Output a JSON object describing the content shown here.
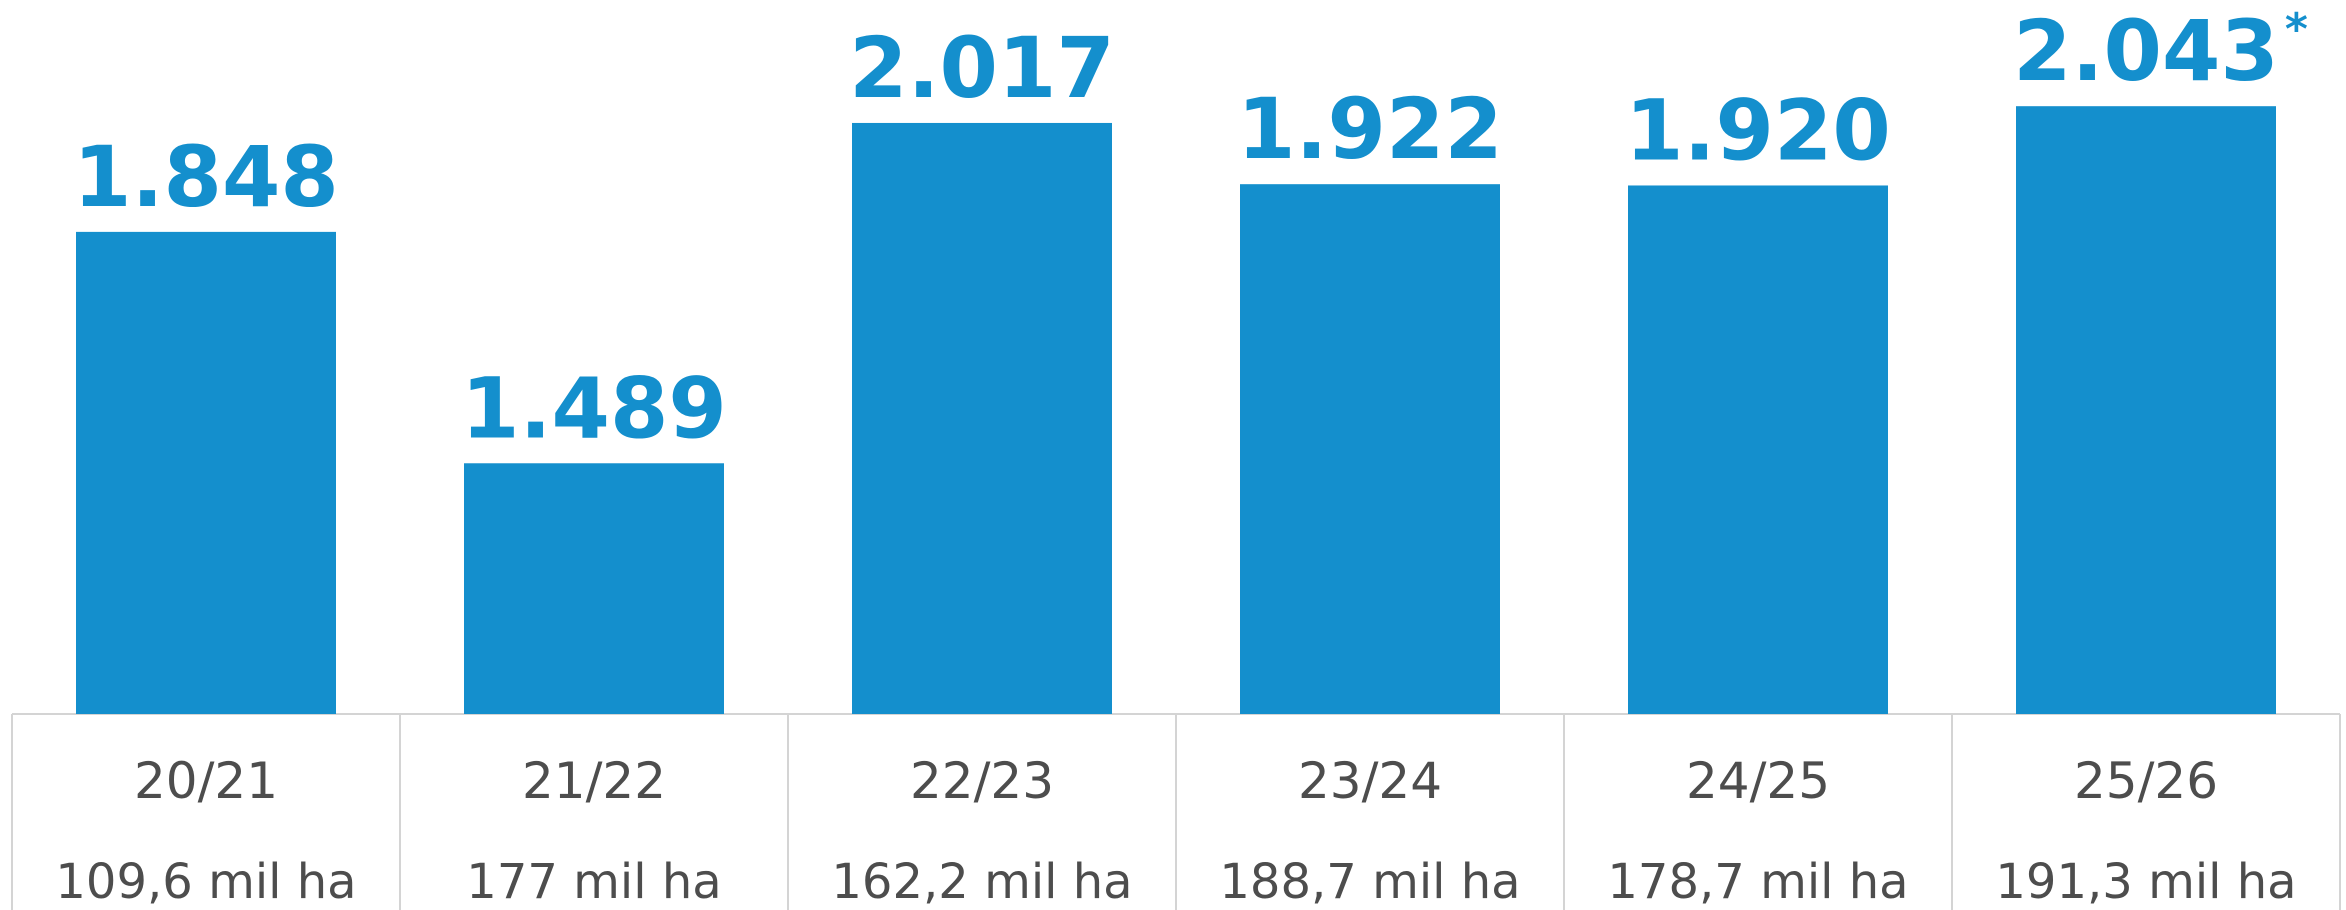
{
  "chart_data": {
    "type": "bar",
    "categories": [
      "20/21",
      "21/22",
      "22/23",
      "23/24",
      "24/25",
      "25/26"
    ],
    "sublabels": [
      "109,6 mil ha",
      "177 mil ha",
      "162,2 mil ha",
      "188,7 mil ha",
      "178,7 mil ha",
      "191,3 mil ha"
    ],
    "values": [
      1848,
      1489,
      2017,
      1922,
      1920,
      2043
    ],
    "value_labels": [
      "1.848",
      "1.489",
      "2.017",
      "1.922",
      "1.920",
      "2.043"
    ],
    "annotation": "*",
    "color": "#148fcd",
    "ylim": [
      1100,
      2200
    ]
  }
}
